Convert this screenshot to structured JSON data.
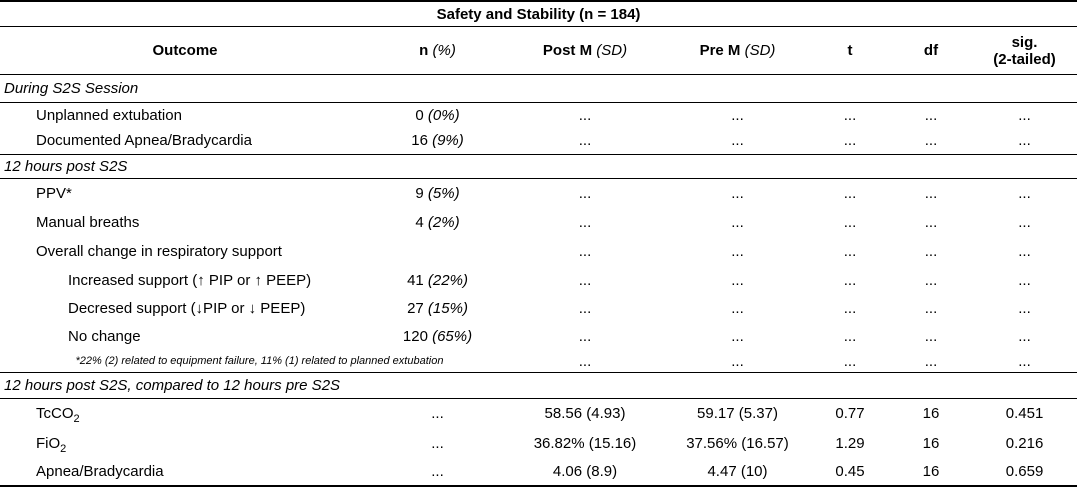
{
  "table": {
    "title": "Safety and Stability (n = 184)",
    "headers": {
      "outcome": "Outcome",
      "n": "n",
      "n_unit": "(%)",
      "post": "Post M",
      "post_unit": "(SD)",
      "pre": "Pre M",
      "pre_unit": "(SD)",
      "t": "t",
      "df": "df",
      "sig_line1": "sig.",
      "sig_line2": "(2-tailed)"
    },
    "rows": [
      {
        "type": "section",
        "label": "During S2S Session"
      },
      {
        "type": "data",
        "indent": 1,
        "label": "Unplanned extubation",
        "n": "0",
        "n_pct": "(0%)",
        "post": "...",
        "pre": "...",
        "t": "...",
        "df": "...",
        "sig": "..."
      },
      {
        "type": "data",
        "indent": 1,
        "label": "Documented Apnea/Bradycardia",
        "n": "16",
        "n_pct": "(9%)",
        "post": "...",
        "pre": "...",
        "t": "...",
        "df": "...",
        "sig": "..."
      },
      {
        "type": "section",
        "label": "12 hours post S2S"
      },
      {
        "type": "data",
        "indent": 1,
        "label": "PPV*",
        "n": "9",
        "n_pct": "(5%)",
        "post": "...",
        "pre": "...",
        "t": "...",
        "df": "...",
        "sig": "..."
      },
      {
        "type": "data",
        "indent": 1,
        "label": "Manual breaths",
        "n": "4",
        "n_pct": "(2%)",
        "post": "...",
        "pre": "...",
        "t": "...",
        "df": "...",
        "sig": "..."
      },
      {
        "type": "data",
        "indent": 1,
        "label": "Overall change in respiratory support",
        "n": "",
        "n_pct": "",
        "post": "...",
        "pre": "...",
        "t": "...",
        "df": "...",
        "sig": "..."
      },
      {
        "type": "data",
        "indent": 2,
        "label": "Increased support (↑ PIP or ↑ PEEP)",
        "n": "41",
        "n_pct": "(22%)",
        "post": "...",
        "pre": "...",
        "t": "...",
        "df": "...",
        "sig": "..."
      },
      {
        "type": "data",
        "indent": 2,
        "label": "Decresed support (↓PIP or ↓ PEEP)",
        "n": "27",
        "n_pct": "(15%)",
        "post": "...",
        "pre": "...",
        "t": "...",
        "df": "...",
        "sig": "..."
      },
      {
        "type": "data",
        "indent": 2,
        "label": "No change",
        "n": "120",
        "n_pct": "(65%)",
        "post": "...",
        "pre": "...",
        "t": "...",
        "df": "...",
        "sig": "..."
      },
      {
        "type": "footnote",
        "label": "*22% (2) related to equipment failure, 11% (1) related to planned extubation",
        "post": "...",
        "pre": "...",
        "t": "...",
        "df": "...",
        "sig": "..."
      },
      {
        "type": "section",
        "label": "12 hours post S2S, compared to 12 hours pre S2S"
      },
      {
        "type": "data",
        "indent": 1,
        "label": "TcCO",
        "label_sub": "2",
        "n": "...",
        "n_pct": "",
        "post": "58.56 (4.93)",
        "pre": "59.17 (5.37)",
        "t": "0.77",
        "df": "16",
        "sig": "0.451"
      },
      {
        "type": "data",
        "indent": 1,
        "label": "FiO",
        "label_sub": "2",
        "n": "...",
        "n_pct": "",
        "post": "36.82% (15.16)",
        "pre": "37.56% (16.57)",
        "t": "1.29",
        "df": "16",
        "sig": "0.216"
      },
      {
        "type": "data",
        "indent": 1,
        "label": "Apnea/Bradycardia",
        "n": "...",
        "n_pct": "",
        "post": "4.06 (8.9)",
        "pre": "4.47 (10)",
        "t": "0.45",
        "df": "16",
        "sig": "0.659"
      }
    ]
  }
}
